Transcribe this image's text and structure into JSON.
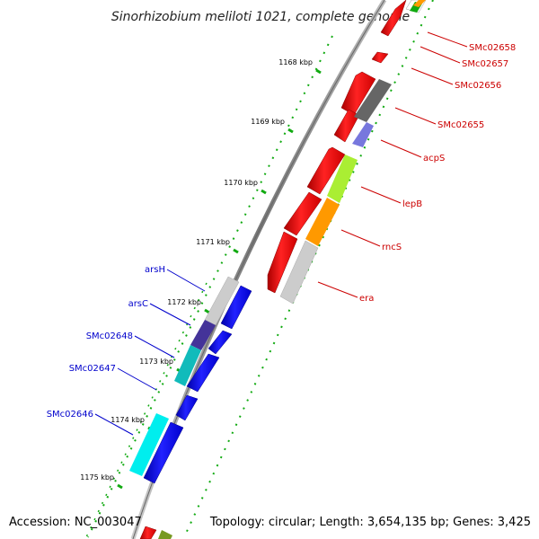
{
  "title": "Sinorhizobium meliloti 1021, complete genome",
  "footer": {
    "accession": "Accession: NC_003047",
    "topology": "Topology: circular; Length: 3,654,135 bp; Genes: 3,425"
  },
  "ticks": [
    "1168 kbp",
    "1169 kbp",
    "1170 kbp",
    "1171 kbp",
    "1172 kbp",
    "1173 kbp",
    "1174 kbp",
    "1175 kbp"
  ],
  "forward_labels": [
    "SMc02658",
    "SMc02657",
    "SMc02656",
    "SMc02655",
    "acpS",
    "lepB",
    "rncS",
    "era"
  ],
  "reverse_labels": [
    "arsH",
    "arsC",
    "SMc02648",
    "SMc02647",
    "SMc02646"
  ],
  "colors": {
    "forward_gene": "#ff0000",
    "reverse_gene": "#0000ff",
    "backbone": "#888888",
    "tick": "#11aa11",
    "forward_label": "#cc0000",
    "reverse_label": "#0000cc",
    "cog_acpS": "#ffffff",
    "cog_SMc02655": "#666666",
    "cog_SMc02655b": "#7777dd",
    "cog_lepB": "#aaee33",
    "cog_rncS": "#ff9900",
    "cog_era": "#cccccc",
    "cog_arsH": "#cccccc",
    "cog_arsC": "#443399",
    "cog_SMc02648": "#11bbbb",
    "cog_SMc02646": "#00eeee"
  }
}
